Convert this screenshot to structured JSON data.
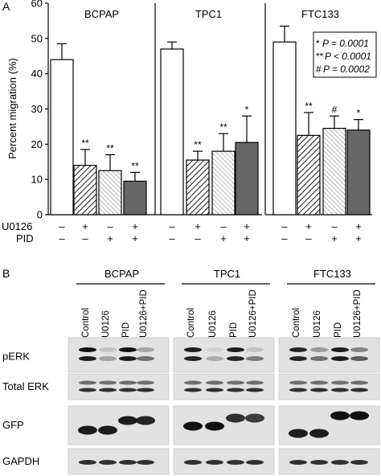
{
  "panel_labels": {
    "a": "A",
    "b": "B"
  },
  "legend": {
    "lines": [
      {
        "mark": "*",
        "text": "P = 0.0001"
      },
      {
        "mark": "**",
        "text": "P < 0.0001"
      },
      {
        "mark": "#",
        "text": "P = 0.0002"
      }
    ]
  },
  "treatments": {
    "labels": [
      "U0126",
      "PID"
    ],
    "rows": [
      [
        "–",
        "+",
        "–",
        "+"
      ],
      [
        "–",
        "–",
        "+",
        "+"
      ]
    ]
  },
  "chart_data": {
    "type": "bar",
    "ylabel": "Percent migration (%)",
    "ylim": [
      0,
      60
    ],
    "yticks": [
      0,
      10,
      20,
      30,
      40,
      50,
      60
    ],
    "groups": [
      {
        "name": "BCPAP",
        "values": [
          44,
          14,
          12.5,
          9.5
        ],
        "errors": [
          4.5,
          4.5,
          4.5,
          2.5
        ],
        "marks": [
          "",
          "**",
          "**",
          "**"
        ]
      },
      {
        "name": "TPC1",
        "values": [
          47,
          15.5,
          18,
          20.5
        ],
        "errors": [
          2,
          2.5,
          5,
          7.5
        ],
        "marks": [
          "",
          "**",
          "**",
          "*"
        ]
      },
      {
        "name": "FTC133",
        "values": [
          49,
          22.5,
          24.5,
          24
        ],
        "errors": [
          4.5,
          6.5,
          3.5,
          3
        ],
        "marks": [
          "",
          "**",
          "#",
          "*"
        ]
      }
    ],
    "bar_styles": [
      "white",
      "diagonal-hatch",
      "light-hatch",
      "gray"
    ],
    "grid": false
  },
  "blot": {
    "cell_lines": [
      "BCPAP",
      "TPC1",
      "FTC133"
    ],
    "lanes": [
      "Control",
      "U0126",
      "PID",
      "U0126+PID"
    ],
    "rows": [
      "pERK",
      "Total ERK",
      "GFP",
      "GAPDH"
    ]
  }
}
